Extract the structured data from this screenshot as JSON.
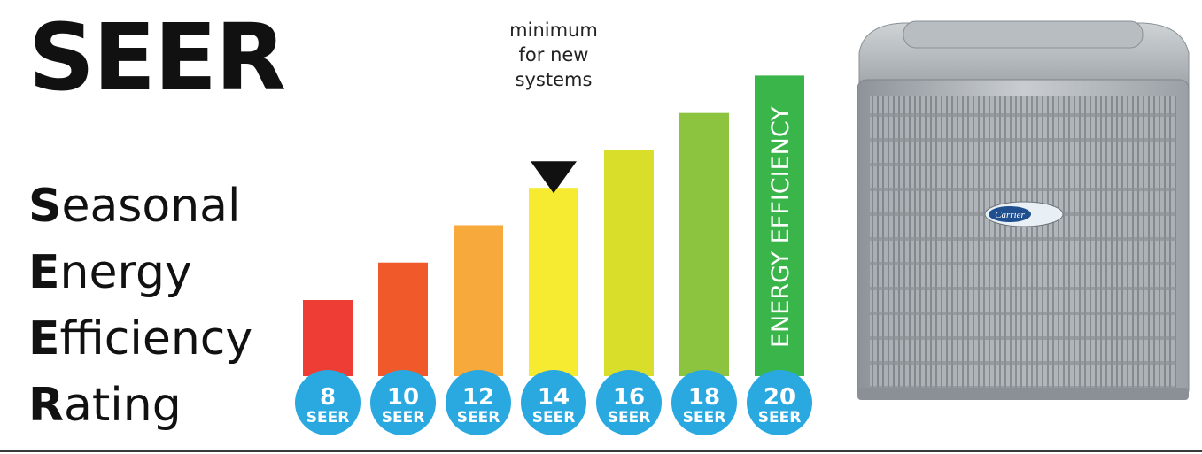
{
  "title": "SEER",
  "acronym": [
    {
      "initial": "S",
      "rest": "easonal"
    },
    {
      "initial": "E",
      "rest": "nergy"
    },
    {
      "initial": "E",
      "rest": "fficiency"
    },
    {
      "initial": "R",
      "rest": "ating"
    }
  ],
  "chart_data": {
    "type": "bar",
    "categories": [
      "8",
      "10",
      "12",
      "14",
      "16",
      "18",
      "20"
    ],
    "values": [
      8,
      10,
      12,
      14,
      16,
      18,
      20
    ],
    "unit_label": "SEER",
    "colors": [
      "#ee3d35",
      "#f05a2b",
      "#f8a93c",
      "#f6eb31",
      "#d9de2a",
      "#8cc43f",
      "#3ab54a"
    ],
    "annotation": {
      "category": "14",
      "lines": [
        "minimum",
        "for new",
        "systems"
      ]
    },
    "bar_text": {
      "category": "20",
      "text": "ENERGY EFFICIENCY"
    },
    "circle_color": "#2aa8e0",
    "legend": "none",
    "grid": false
  },
  "product": {
    "brand_badge": "Carrier"
  }
}
